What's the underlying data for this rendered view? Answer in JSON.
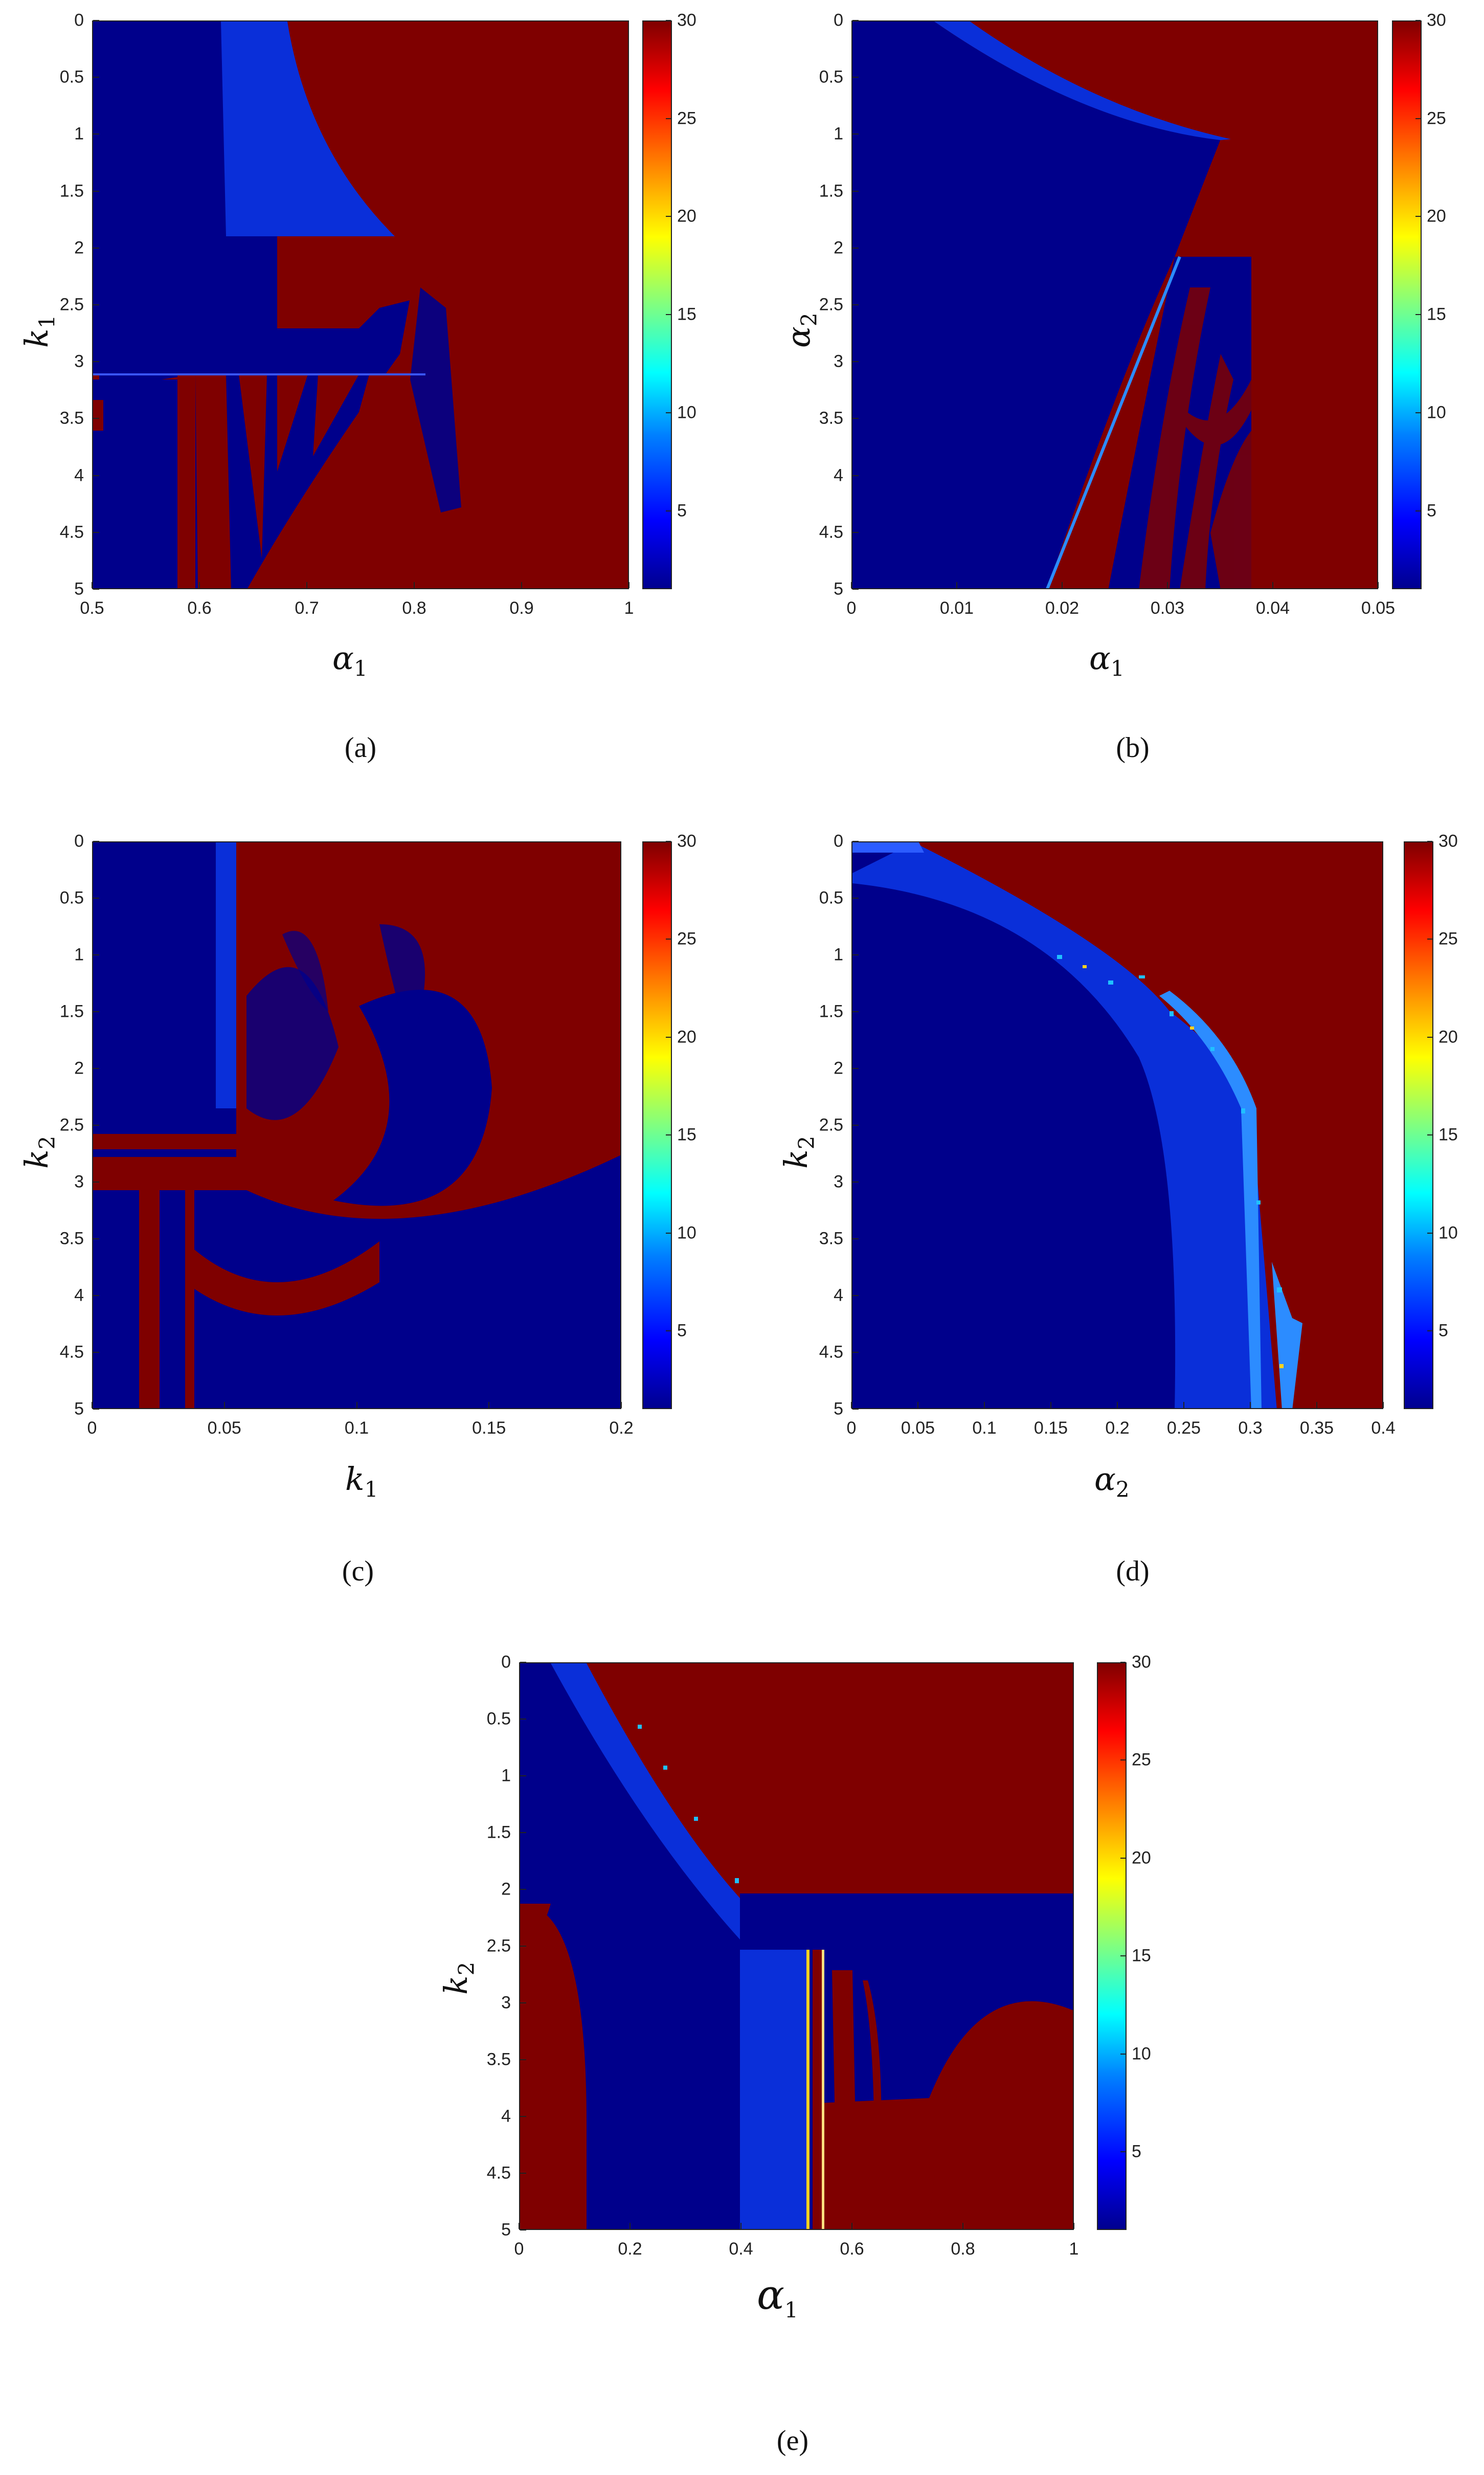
{
  "colorbar": {
    "ticks": [
      "30",
      "25",
      "20",
      "15",
      "10",
      "5"
    ],
    "values": [
      30,
      25,
      20,
      15,
      10,
      5
    ],
    "range": [
      1,
      30
    ],
    "colormap": "jet"
  },
  "colors": {
    "low": "#00008b",
    "band": "#0a2fd9",
    "high": "#7f0000"
  },
  "chart_data": [
    {
      "type": "heatmap",
      "caption": "(a)",
      "xlabel": "α",
      "xsub": "1",
      "ylabel": "k",
      "ysub": "1",
      "xlim": [
        0.5,
        1
      ],
      "ylim": [
        0,
        5
      ],
      "xticks": [
        "0.5",
        "0.6",
        "0.7",
        "0.8",
        "0.9",
        "1"
      ],
      "yticks": [
        "0",
        "0.5",
        "1",
        "1.5",
        "2",
        "2.5",
        "3",
        "3.5",
        "4",
        "4.5",
        "5"
      ]
    },
    {
      "type": "heatmap",
      "caption": "(b)",
      "xlabel": "α",
      "xsub": "1",
      "ylabel": "α",
      "ysub": "2",
      "xlim": [
        0,
        0.05
      ],
      "ylim": [
        0,
        5
      ],
      "xticks": [
        "0",
        "0.01",
        "0.02",
        "0.03",
        "0.04",
        "0.05"
      ],
      "yticks": [
        "0",
        "0.5",
        "1",
        "1.5",
        "2",
        "2.5",
        "3",
        "3.5",
        "4",
        "4.5",
        "5"
      ]
    },
    {
      "type": "heatmap",
      "caption": "(c)",
      "xlabel": "k",
      "xsub": "1",
      "ylabel": "k",
      "ysub": "2",
      "xlim": [
        0,
        0.2
      ],
      "ylim": [
        0,
        5
      ],
      "xticks": [
        "0",
        "0.05",
        "0.1",
        "0.15",
        "0.2"
      ],
      "yticks": [
        "0",
        "0.5",
        "1",
        "1.5",
        "2",
        "2.5",
        "3",
        "3.5",
        "4",
        "4.5",
        "5"
      ]
    },
    {
      "type": "heatmap",
      "caption": "(d)",
      "xlabel": "α",
      "xsub": "2",
      "ylabel": "k",
      "ysub": "2",
      "xlim": [
        0,
        0.4
      ],
      "ylim": [
        0,
        5
      ],
      "xticks": [
        "0",
        "0.05",
        "0.1",
        "0.15",
        "0.2",
        "0.25",
        "0.3",
        "0.35",
        "0.4"
      ],
      "yticks": [
        "0",
        "0.5",
        "1",
        "1.5",
        "2",
        "2.5",
        "3",
        "3.5",
        "4",
        "4.5",
        "5"
      ]
    },
    {
      "type": "heatmap",
      "caption": "(e)",
      "xlabel": "α",
      "xsub": "1",
      "ylabel": "k",
      "ysub": "2",
      "xlim": [
        0,
        1
      ],
      "ylim": [
        0,
        5
      ],
      "xticks": [
        "0",
        "0.2",
        "0.4",
        "0.6",
        "0.8",
        "1"
      ],
      "yticks": [
        "0",
        "0.5",
        "1",
        "1.5",
        "2",
        "2.5",
        "3",
        "3.5",
        "4",
        "4.5",
        "5"
      ]
    }
  ]
}
